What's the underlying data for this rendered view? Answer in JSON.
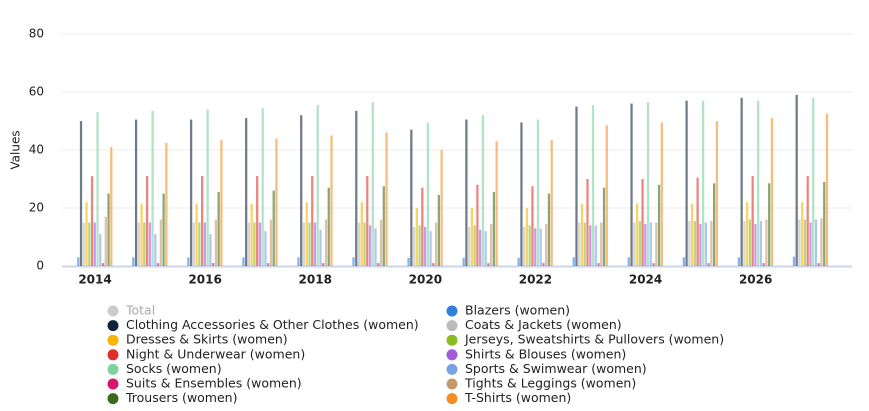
{
  "chart_data": {
    "type": "bar",
    "ylabel": "Values",
    "x": [
      2014,
      2015,
      2016,
      2017,
      2018,
      2019,
      2020,
      2021,
      2022,
      2023,
      2024,
      2025,
      2026,
      2027
    ],
    "xlim": [
      2013.4,
      2027.75
    ],
    "xticks": [
      2014,
      2016,
      2018,
      2020,
      2022,
      2024,
      2026
    ],
    "ylim": [
      0,
      80
    ],
    "yticks": [
      0,
      20,
      40,
      60,
      80
    ],
    "grid": true,
    "legend": "bottom",
    "series": [
      {
        "name": "Total",
        "color": "#cccccc",
        "visible": false,
        "values": [
          null,
          null,
          null,
          null,
          null,
          null,
          null,
          null,
          null,
          null,
          null,
          null,
          null,
          null
        ]
      },
      {
        "name": "Blazers (women)",
        "color": "#2f7ed8",
        "values": [
          3,
          3,
          3,
          3,
          3,
          3,
          2.8,
          2.8,
          2.8,
          3,
          3,
          3,
          3,
          3.2
        ]
      },
      {
        "name": "Clothing Accessories & Other Clothes (women)",
        "color": "#0d233a",
        "values": [
          50,
          50.5,
          50.5,
          51,
          52,
          53.5,
          47,
          50.5,
          49.5,
          55,
          56,
          57,
          58,
          59
        ]
      },
      {
        "name": "Coats & Jackets (women)",
        "color": "#bbbbbb",
        "values": [
          15,
          15,
          15,
          15,
          15,
          15,
          13.5,
          13.5,
          13.5,
          15,
          15,
          15.5,
          15.5,
          16
        ]
      },
      {
        "name": "Dresses & Skirts (women)",
        "color": "#f7b500",
        "values": [
          22,
          21.5,
          21.5,
          21.5,
          22,
          22,
          20,
          20,
          20,
          21.5,
          21.5,
          21.5,
          22,
          22
        ]
      },
      {
        "name": "Jerseys, Sweatshirts & Pullovers (women)",
        "color": "#8bbc21",
        "values": [
          15,
          15,
          15,
          15,
          15,
          15,
          14,
          14,
          14,
          15,
          15.5,
          15.5,
          16,
          16
        ]
      },
      {
        "name": "Night & Underwear (women)",
        "color": "#e0302b",
        "values": [
          31,
          31,
          31,
          31,
          31,
          31,
          27,
          28,
          27.5,
          30,
          30,
          30.5,
          31,
          31
        ]
      },
      {
        "name": "Shirts & Blouses (women)",
        "color": "#a05cd6",
        "values": [
          15,
          15,
          15,
          15,
          15,
          14,
          13.5,
          12.5,
          13,
          14,
          14.5,
          14.5,
          14.5,
          15
        ]
      },
      {
        "name": "Socks (women)",
        "color": "#7fd1a0",
        "values": [
          53,
          53.5,
          54,
          54.5,
          55.5,
          56.5,
          49.5,
          52,
          50.5,
          55.5,
          56.5,
          57,
          57,
          58
        ]
      },
      {
        "name": "Sports & Swimwear (women)",
        "color": "#77a1e5",
        "values": [
          11,
          11,
          11,
          12,
          12.5,
          13,
          12,
          12,
          13,
          14,
          15,
          15,
          15.5,
          16
        ]
      },
      {
        "name": "Suits & Ensembles (women)",
        "color": "#d6156c",
        "values": [
          1,
          1,
          1,
          1,
          1,
          1,
          1,
          1,
          1,
          1,
          1,
          1,
          1,
          1
        ]
      },
      {
        "name": "Tights & Leggings (women)",
        "color": "#c49a6c",
        "values": [
          17,
          16,
          16,
          16,
          16,
          16,
          15,
          14.5,
          14.5,
          15,
          15,
          15.5,
          16,
          16.5
        ]
      },
      {
        "name": "Trousers (women)",
        "color": "#3a6a1a",
        "values": [
          25,
          25,
          25.5,
          26,
          27,
          27.5,
          24.5,
          25.5,
          25,
          27,
          28,
          28.5,
          28.5,
          29
        ]
      },
      {
        "name": "T-Shirts (women)",
        "color": "#f28f20",
        "values": [
          41,
          42.5,
          43.5,
          44,
          45,
          46,
          40,
          43,
          43.5,
          48.5,
          49.5,
          50,
          51,
          52.5
        ]
      }
    ]
  }
}
